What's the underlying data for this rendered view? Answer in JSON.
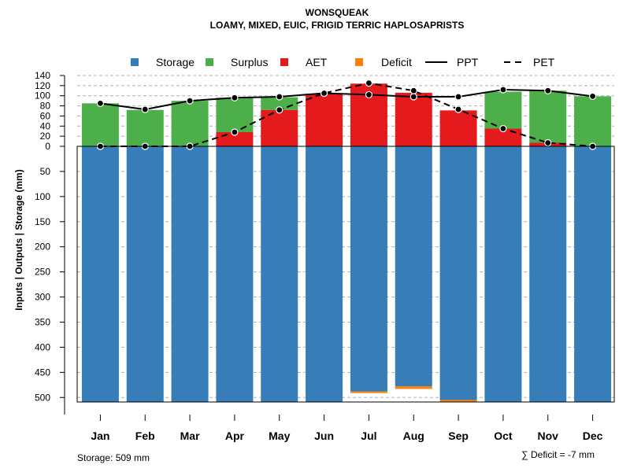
{
  "chart_data": {
    "type": "bar",
    "title": "WONSQUEAK",
    "subtitle": "LOAMY, MIXED, EUIC, FRIGID TERRIC HAPLOSAPRISTS",
    "ylabel": "Inputs | Outputs | Storage    (mm)",
    "categories": [
      "Jan",
      "Feb",
      "Mar",
      "Apr",
      "May",
      "Jun",
      "Jul",
      "Aug",
      "Sep",
      "Oct",
      "Nov",
      "Dec"
    ],
    "upper_ticks": [
      "0",
      "20",
      "40",
      "60",
      "80",
      "100",
      "120",
      "140"
    ],
    "lower_ticks": [
      "50",
      "100",
      "150",
      "200",
      "250",
      "300",
      "350",
      "400",
      "450",
      "500"
    ],
    "upper_range": [
      0,
      140
    ],
    "lower_range": [
      0,
      509
    ],
    "series": [
      {
        "name": "Storage",
        "color": "#377EB8",
        "values": [
          509,
          509,
          509,
          509,
          509,
          509,
          488,
          478,
          505,
          509,
          509,
          509
        ]
      },
      {
        "name": "Deficit",
        "color": "#FF7F00",
        "values": [
          0,
          0,
          0,
          0,
          0,
          0,
          1,
          5,
          2,
          0,
          0,
          0
        ]
      },
      {
        "name": "AET",
        "color": "#E41A1C",
        "values": [
          0,
          0,
          0,
          28,
          72,
          104,
          124,
          106,
          71,
          35,
          7,
          0
        ]
      },
      {
        "name": "Surplus",
        "color": "#4DAF4A",
        "values": [
          85,
          72,
          90,
          68,
          25,
          0,
          0,
          0,
          0,
          73,
          103,
          99
        ]
      },
      {
        "name": "PPT",
        "color": "#000000",
        "style": "solid",
        "values": [
          85,
          73,
          90,
          96,
          98,
          105,
          102,
          98,
          98,
          112,
          110,
          99
        ]
      },
      {
        "name": "PET",
        "color": "#000000",
        "style": "dashed",
        "values": [
          0,
          0,
          0,
          28,
          72,
          105,
          125,
          110,
          73,
          35,
          7,
          0
        ]
      }
    ],
    "legend": {
      "position": "top",
      "entries": [
        {
          "label": "Storage",
          "kind": "box",
          "color": "#377EB8"
        },
        {
          "label": "Surplus",
          "kind": "box",
          "color": "#4DAF4A"
        },
        {
          "label": "AET",
          "kind": "box",
          "color": "#E41A1C"
        },
        {
          "label": "Deficit",
          "kind": "box",
          "color": "#FF7F00"
        },
        {
          "label": "PPT",
          "kind": "solid"
        },
        {
          "label": "PET",
          "kind": "dashed"
        }
      ]
    },
    "notes": {
      "storage": "Storage: 509 mm",
      "deficit": "∑ Deficit = -7 mm"
    }
  }
}
